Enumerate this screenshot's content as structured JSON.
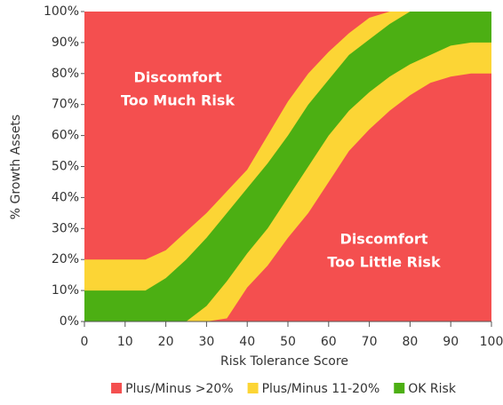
{
  "chart_data": {
    "type": "band",
    "x": [
      0,
      5,
      10,
      15,
      20,
      25,
      30,
      35,
      40,
      45,
      50,
      55,
      60,
      65,
      70,
      75,
      80,
      85,
      90,
      95,
      100
    ],
    "xlabel": "Risk Tolerance Score",
    "ylabel": "% Growth Assets",
    "xlim": [
      0,
      100
    ],
    "ylim": [
      0,
      100
    ],
    "xticks": [
      0,
      10,
      20,
      30,
      40,
      50,
      60,
      70,
      80,
      90,
      100
    ],
    "yticks": [
      {
        "value": 0,
        "label": "0%"
      },
      {
        "value": 10,
        "label": "10%"
      },
      {
        "value": 20,
        "label": "20%"
      },
      {
        "value": 30,
        "label": "30%"
      },
      {
        "value": 40,
        "label": "40%"
      },
      {
        "value": 50,
        "label": "50%"
      },
      {
        "value": 60,
        "label": "60%"
      },
      {
        "value": 70,
        "label": "70%"
      },
      {
        "value": 80,
        "label": "80%"
      },
      {
        "value": 90,
        "label": "90%"
      },
      {
        "value": 100,
        "label": "100%"
      }
    ],
    "series": [
      {
        "name": "Plus/Minus >20%",
        "color": "#f44f4f"
      },
      {
        "name": "Plus/Minus 11-20%",
        "color": "#fcd535",
        "low": [
          0,
          0,
          0,
          0,
          0,
          0,
          0,
          1,
          11,
          18,
          27,
          35,
          45,
          55,
          62,
          68,
          73,
          77,
          79,
          80,
          80
        ],
        "high": [
          20,
          20,
          20,
          20,
          23,
          29,
          35,
          42,
          49,
          60,
          71,
          80,
          87,
          93,
          98,
          100,
          100,
          100,
          100,
          100,
          100
        ]
      },
      {
        "name": "OK Risk",
        "color": "#4caf13",
        "low": [
          0,
          0,
          0,
          0,
          0,
          0,
          5,
          13,
          22,
          30,
          40,
          50,
          60,
          68,
          74,
          79,
          83,
          86,
          89,
          90,
          90
        ],
        "high": [
          10,
          10,
          10,
          10,
          14,
          20,
          27,
          35,
          43,
          51,
          60,
          70,
          78,
          86,
          91,
          96,
          100,
          100,
          100,
          100,
          100
        ]
      }
    ],
    "annotations": [
      [
        "Discomfort",
        "Too Much Risk"
      ],
      [
        "Discomfort",
        "Too Little Risk"
      ]
    ],
    "legend": "bottom"
  }
}
